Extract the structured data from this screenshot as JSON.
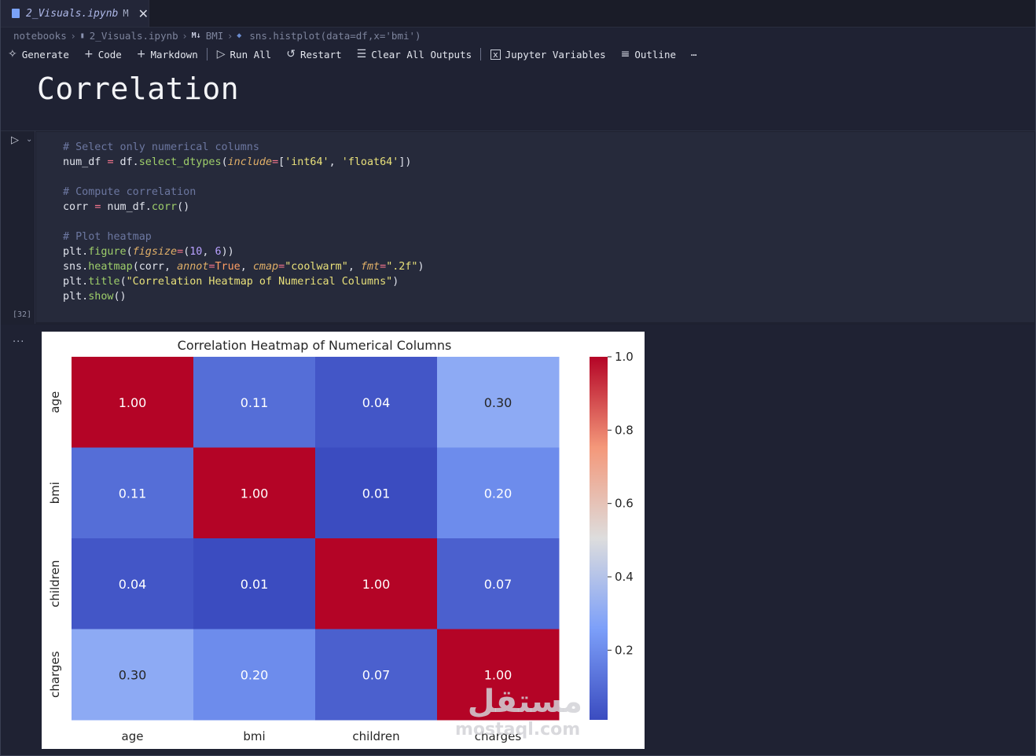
{
  "tab": {
    "name": "2_Visuals.ipynb",
    "modified": "M",
    "close": "✕"
  },
  "breadcrumb": {
    "items": [
      "notebooks",
      "2_Visuals.ipynb",
      "BMI",
      "sns.histplot(data=df,x='bmi')"
    ],
    "markdown_badge": "M↓"
  },
  "toolbar": {
    "generate": "Generate",
    "code": "Code",
    "markdown": "Markdown",
    "run_all": "Run All",
    "restart": "Restart",
    "clear_outputs": "Clear All Outputs",
    "variables": "Jupyter Variables",
    "outline": "Outline",
    "more": "⋯"
  },
  "markdown_cell": {
    "heading": "Correlation"
  },
  "code_cell": {
    "execution_count": "[32]"
  },
  "output": {
    "more": "..."
  },
  "chart_data": {
    "type": "heatmap",
    "title": "Correlation Heatmap of Numerical Columns",
    "categories": [
      "age",
      "bmi",
      "children",
      "charges"
    ],
    "values": [
      [
        1.0,
        0.11,
        0.04,
        0.3
      ],
      [
        0.11,
        1.0,
        0.01,
        0.2
      ],
      [
        0.04,
        0.01,
        1.0,
        0.07
      ],
      [
        0.3,
        0.2,
        0.07,
        1.0
      ]
    ],
    "value_labels": [
      [
        "1.00",
        "0.11",
        "0.04",
        "0.30"
      ],
      [
        "0.11",
        "1.00",
        "0.01",
        "0.20"
      ],
      [
        "0.04",
        "0.01",
        "1.00",
        "0.07"
      ],
      [
        "0.30",
        "0.20",
        "0.07",
        "1.00"
      ]
    ],
    "colormap": "coolwarm",
    "colorbar": {
      "ticks": [
        1.0,
        0.8,
        0.6,
        0.4,
        0.2
      ],
      "tick_labels": [
        "1.0",
        "0.8",
        "0.6",
        "0.4",
        "0.2"
      ],
      "range": [
        0.01,
        1.0
      ]
    }
  },
  "watermark": {
    "arabic": "مستقل",
    "latin": "mostaql.com"
  }
}
